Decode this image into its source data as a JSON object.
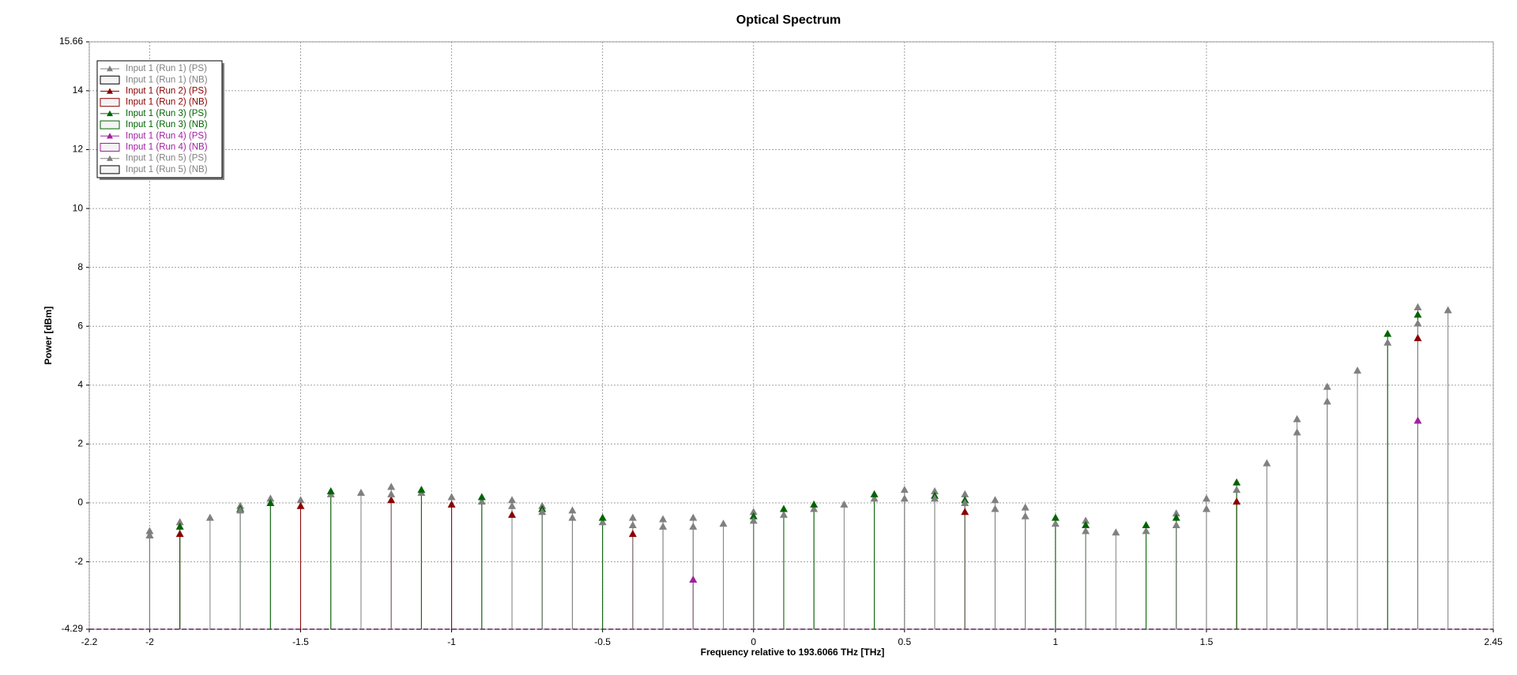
{
  "chart_data": {
    "type": "stem",
    "title": "Optical Spectrum",
    "x_label": "Frequency relative to 193.6066 THz [THz]",
    "y_label": "Power [dBm]",
    "xlim": [
      -2.2,
      2.45
    ],
    "xticks": [
      -2.2,
      -2,
      -1.5,
      -1,
      -0.5,
      0,
      0.5,
      1,
      1.5,
      2.45
    ],
    "ylim": [
      -4.29,
      15.66
    ],
    "yticks": [
      -4.29,
      -2,
      0,
      2,
      4,
      6,
      8,
      10,
      12,
      14,
      15.66
    ],
    "grid": true,
    "legend": "top-left",
    "x": [
      -2,
      -1.9,
      -1.8,
      -1.7,
      -1.6,
      -1.5,
      -1.4,
      -1.3,
      -1.2,
      -1.1,
      -1,
      -0.9,
      -0.8,
      -0.7,
      -0.6,
      -0.5,
      -0.4,
      -0.3,
      -0.2,
      -0.1,
      0,
      0.1,
      0.2,
      0.3,
      0.4,
      0.5,
      0.6,
      0.7,
      0.8,
      0.9,
      1,
      1.1,
      1.2,
      1.3,
      1.4,
      1.5,
      1.6,
      1.7,
      1.8,
      1.9,
      2,
      2.1,
      2.2,
      2.3
    ],
    "series": [
      {
        "name": "Input 1 (Run 1) (PS)",
        "color": "#808080",
        "marker": "triangle",
        "values": [
          -0.95,
          -0.65,
          -0.5,
          -0.1,
          0.15,
          0.1,
          0.3,
          0.35,
          0.55,
          0.35,
          0.2,
          0.05,
          0.1,
          -0.1,
          -0.25,
          -0.65,
          -0.5,
          -0.55,
          -0.5,
          -0.7,
          -0.3,
          -0.4,
          -0.2,
          -0.05,
          0.15,
          0.45,
          0.4,
          0.3,
          0.1,
          -0.15,
          -0.7,
          -0.6,
          -1.0,
          -0.95,
          -0.35,
          0.15,
          0.45,
          1.35,
          2.85,
          3.95,
          4.5,
          5.45,
          6.65,
          6.55
        ]
      },
      {
        "name": "Input 1 (Run 1) (NB)",
        "color": "#808080",
        "marker": "box",
        "values": [
          null,
          null,
          null,
          null,
          null,
          null,
          null,
          null,
          null,
          null,
          null,
          null,
          null,
          null,
          null,
          null,
          null,
          null,
          null,
          null,
          null,
          null,
          null,
          null,
          null,
          null,
          null,
          null,
          null,
          null,
          null,
          null,
          null,
          null,
          null,
          null,
          null,
          null,
          null,
          null,
          null,
          null,
          null,
          null
        ]
      },
      {
        "name": "Input 1 (Run 2) (PS)",
        "color": "#8b0000",
        "marker": "triangle",
        "values": [
          null,
          -1.05,
          null,
          null,
          null,
          -0.1,
          null,
          null,
          0.1,
          null,
          -0.05,
          null,
          -0.4,
          null,
          null,
          null,
          -1.05,
          null,
          null,
          null,
          null,
          null,
          null,
          null,
          null,
          null,
          null,
          -0.3,
          null,
          null,
          null,
          null,
          null,
          null,
          null,
          null,
          0.05,
          null,
          null,
          null,
          null,
          null,
          5.6,
          null
        ]
      },
      {
        "name": "Input 1 (Run 2) (NB)",
        "color": "#8b0000",
        "marker": "box",
        "values": [
          null,
          null,
          null,
          null,
          null,
          null,
          null,
          null,
          null,
          null,
          null,
          null,
          null,
          null,
          null,
          null,
          null,
          null,
          null,
          null,
          null,
          null,
          null,
          null,
          null,
          null,
          null,
          null,
          null,
          null,
          null,
          null,
          null,
          null,
          null,
          null,
          null,
          null,
          null,
          null,
          null,
          null,
          null,
          null
        ]
      },
      {
        "name": "Input 1 (Run 3) (PS)",
        "color": "#006400",
        "marker": "triangle",
        "values": [
          -1.1,
          -0.8,
          null,
          -0.2,
          0.0,
          null,
          0.4,
          null,
          null,
          0.45,
          null,
          0.2,
          null,
          -0.2,
          null,
          -0.5,
          null,
          null,
          null,
          null,
          -0.45,
          -0.2,
          -0.05,
          null,
          0.3,
          null,
          0.25,
          0.1,
          null,
          null,
          -0.5,
          -0.75,
          null,
          -0.75,
          -0.5,
          null,
          0.7,
          null,
          null,
          null,
          null,
          5.75,
          6.4,
          null
        ]
      },
      {
        "name": "Input 1 (Run 3) (NB)",
        "color": "#006400",
        "marker": "box",
        "values": [
          null,
          null,
          null,
          null,
          null,
          null,
          null,
          null,
          null,
          null,
          null,
          null,
          null,
          null,
          null,
          null,
          null,
          null,
          null,
          null,
          null,
          null,
          null,
          null,
          null,
          null,
          null,
          null,
          null,
          null,
          null,
          null,
          null,
          null,
          null,
          null,
          null,
          null,
          null,
          null,
          null,
          null,
          null,
          null
        ]
      },
      {
        "name": "Input 1 (Run 4) (PS)",
        "color": "#a020a0",
        "marker": "triangle",
        "values": [
          null,
          null,
          null,
          null,
          null,
          null,
          null,
          null,
          null,
          null,
          null,
          null,
          null,
          null,
          null,
          null,
          null,
          null,
          -2.6,
          null,
          null,
          null,
          null,
          null,
          null,
          null,
          null,
          null,
          null,
          null,
          null,
          null,
          null,
          null,
          null,
          null,
          null,
          null,
          null,
          null,
          null,
          null,
          2.8,
          null
        ]
      },
      {
        "name": "Input 1 (Run 4) (NB)",
        "color": "#a020a0",
        "marker": "box",
        "values": [
          null,
          null,
          null,
          null,
          null,
          null,
          null,
          null,
          null,
          null,
          null,
          null,
          null,
          null,
          null,
          null,
          null,
          null,
          null,
          null,
          null,
          null,
          null,
          null,
          null,
          null,
          null,
          null,
          null,
          null,
          null,
          null,
          null,
          null,
          null,
          null,
          null,
          null,
          null,
          null,
          null,
          null,
          null,
          null
        ]
      },
      {
        "name": "Input 1 (Run 5) (PS)",
        "color": "#808080",
        "marker": "triangle",
        "values": [
          -1.1,
          null,
          null,
          -0.25,
          null,
          null,
          null,
          null,
          0.3,
          null,
          null,
          null,
          -0.1,
          -0.3,
          -0.5,
          null,
          -0.75,
          -0.8,
          -0.8,
          null,
          -0.6,
          null,
          null,
          null,
          null,
          0.15,
          0.15,
          0.0,
          -0.2,
          -0.45,
          null,
          -0.95,
          null,
          null,
          -0.75,
          -0.2,
          null,
          null,
          2.4,
          3.45,
          null,
          null,
          6.1,
          null
        ]
      },
      {
        "name": "Input 1 (Run 5) (NB)",
        "color": "#808080",
        "marker": "box",
        "values": [
          null,
          null,
          null,
          null,
          null,
          null,
          null,
          null,
          null,
          null,
          null,
          null,
          null,
          null,
          null,
          null,
          null,
          null,
          null,
          null,
          null,
          null,
          null,
          null,
          null,
          null,
          null,
          null,
          null,
          null,
          null,
          null,
          null,
          null,
          null,
          null,
          null,
          null,
          null,
          null,
          null,
          null,
          null,
          null
        ]
      }
    ]
  }
}
